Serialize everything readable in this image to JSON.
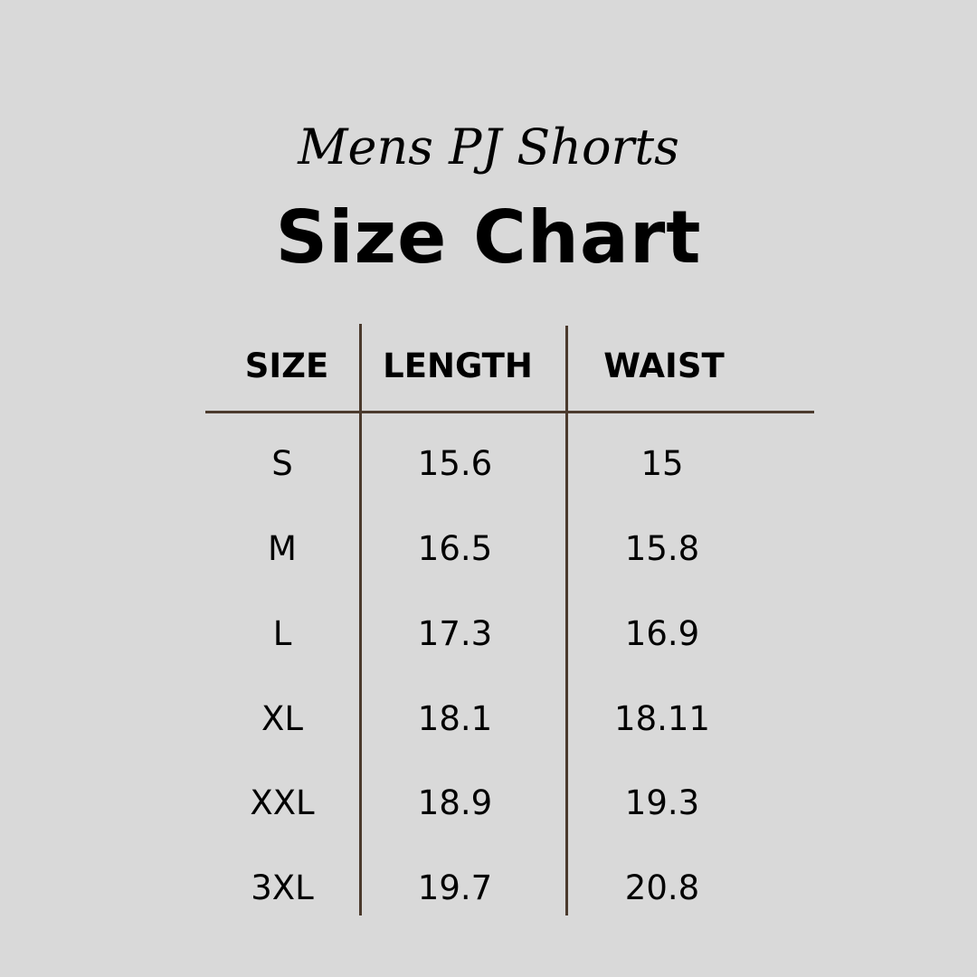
{
  "header": {
    "subtitle": "Mens PJ Shorts",
    "title": "Size Chart"
  },
  "table": {
    "columns": [
      "SIZE",
      "LENGTH",
      "WAIST"
    ],
    "rows": [
      [
        "S",
        "15.6",
        "15"
      ],
      [
        "M",
        "16.5",
        "15.8"
      ],
      [
        "L",
        "17.3",
        "16.9"
      ],
      [
        "XL",
        "18.1",
        "18.11"
      ],
      [
        "XXL",
        "18.9",
        "19.3"
      ],
      [
        "3XL",
        "19.7",
        "20.8"
      ]
    ]
  },
  "colors": {
    "background": "#d9d9d9",
    "divider": "#4b3a2d",
    "text": "#000000"
  }
}
